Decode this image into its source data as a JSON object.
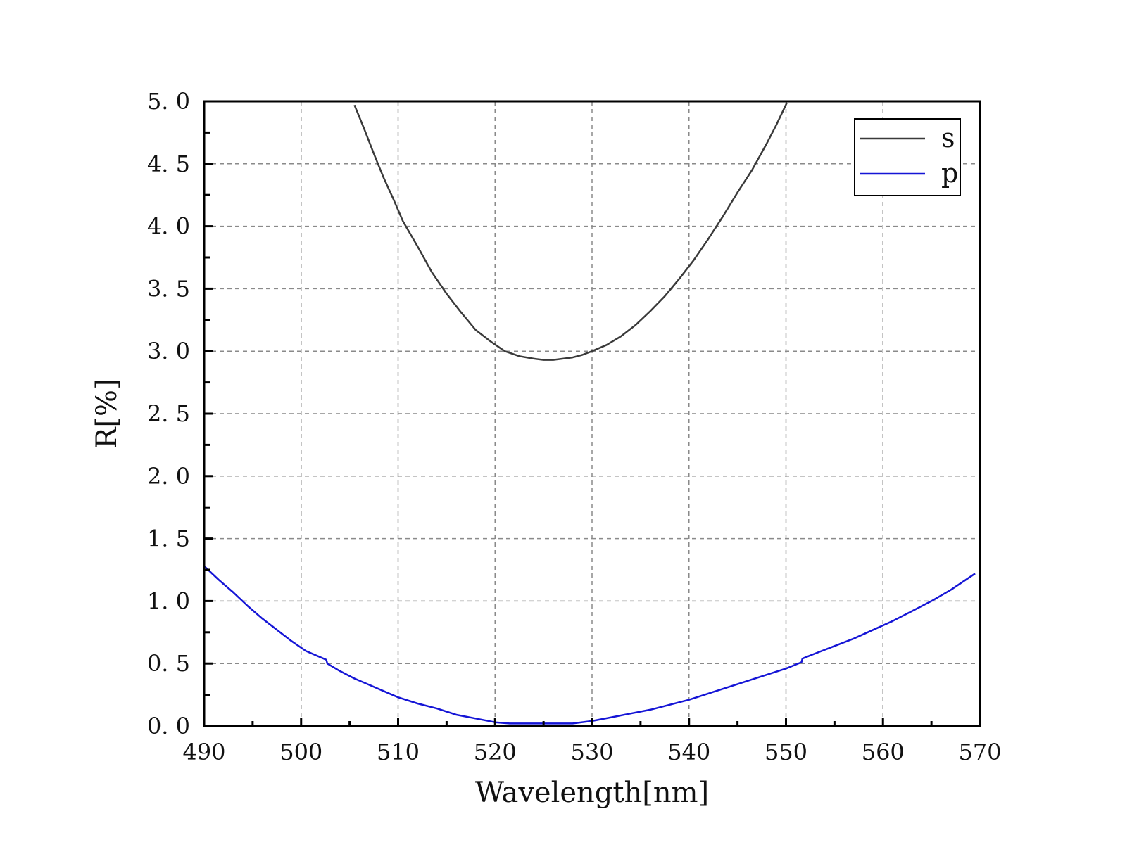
{
  "chart_data": {
    "type": "line",
    "xlabel": "Wavelength[nm]",
    "ylabel": "R[%]",
    "xlim": [
      490,
      570
    ],
    "ylim": [
      0,
      5
    ],
    "xticks": [
      490,
      500,
      510,
      520,
      530,
      540,
      550,
      560,
      570
    ],
    "xtick_labels": [
      "490",
      "500",
      "510",
      "520",
      "530",
      "540",
      "550",
      "560",
      "570"
    ],
    "yticks": [
      0,
      0.5,
      1,
      1.5,
      2,
      2.5,
      3,
      3.5,
      4,
      4.5,
      5
    ],
    "ytick_labels": [
      "0. 0",
      "0. 5",
      "1. 0",
      "1. 5",
      "2. 0",
      "2. 5",
      "3. 0",
      "3. 5",
      "4. 0",
      "4. 5",
      "5. 0"
    ],
    "grid": true,
    "legend_position": "top-right",
    "series": [
      {
        "name": "s",
        "color": "#3a3a3a",
        "x": [
          505.5,
          506.5,
          507.5,
          508.5,
          509.5,
          510.5,
          512,
          513.5,
          515,
          516.5,
          518,
          519.5,
          521,
          522.5,
          524,
          525,
          526,
          527,
          528,
          529,
          530,
          531.5,
          533,
          534.5,
          536,
          537.5,
          539,
          540.5,
          542,
          543.5,
          545,
          546.5,
          548,
          549,
          550.1
        ],
        "y": [
          4.97,
          4.78,
          4.58,
          4.39,
          4.22,
          4.04,
          3.84,
          3.63,
          3.46,
          3.31,
          3.17,
          3.08,
          3.0,
          2.96,
          2.94,
          2.93,
          2.93,
          2.94,
          2.95,
          2.97,
          3.0,
          3.05,
          3.12,
          3.21,
          3.32,
          3.44,
          3.58,
          3.73,
          3.9,
          4.08,
          4.27,
          4.45,
          4.66,
          4.81,
          4.99
        ]
      },
      {
        "name": "p",
        "color": "#1515d6",
        "x": [
          490,
          491.5,
          493,
          494.5,
          496,
          497.5,
          499,
          500.5,
          502,
          502.6,
          502.7,
          504,
          505.5,
          507,
          508.5,
          510,
          512,
          514,
          516,
          518,
          520,
          521.5,
          523,
          525,
          527,
          528,
          530,
          532,
          534,
          536,
          538,
          540,
          542,
          544,
          546,
          548,
          550,
          551.6,
          551.7,
          553,
          555,
          557,
          559,
          561,
          563,
          565,
          567,
          569.5
        ],
        "y": [
          1.28,
          1.17,
          1.07,
          0.96,
          0.86,
          0.77,
          0.68,
          0.6,
          0.55,
          0.53,
          0.5,
          0.44,
          0.38,
          0.33,
          0.28,
          0.23,
          0.18,
          0.14,
          0.09,
          0.06,
          0.03,
          0.02,
          0.02,
          0.02,
          0.02,
          0.02,
          0.04,
          0.07,
          0.1,
          0.13,
          0.17,
          0.21,
          0.26,
          0.31,
          0.36,
          0.41,
          0.46,
          0.51,
          0.54,
          0.58,
          0.64,
          0.7,
          0.77,
          0.84,
          0.92,
          1.0,
          1.09,
          1.22
        ]
      }
    ]
  }
}
